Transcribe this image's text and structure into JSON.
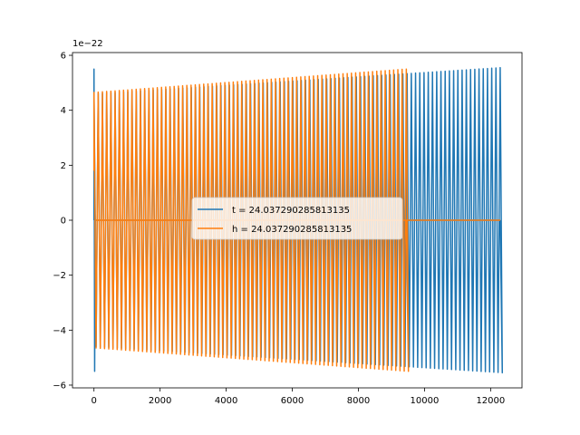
{
  "chart_data": {
    "type": "line",
    "title": "",
    "xlabel": "",
    "ylabel": "",
    "offset_text": "1e−22",
    "xlim": [
      -650,
      12950
    ],
    "ylim": [
      -6.1,
      6.1
    ],
    "xticks": [
      0,
      2000,
      4000,
      6000,
      8000,
      10000,
      12000
    ],
    "xtick_labels": [
      "0",
      "2000",
      "4000",
      "6000",
      "8000",
      "10000",
      "12000"
    ],
    "yticks": [
      -6,
      -4,
      -2,
      0,
      2,
      4,
      6
    ],
    "ytick_labels": [
      "−6",
      "−4",
      "−2",
      "0",
      "2",
      "4",
      "6"
    ],
    "grid": false,
    "legend_position": "center",
    "series": [
      {
        "name": "t = 24.037290285813135",
        "color": "#1f77b4",
        "x_start": 0,
        "x_end": 12290,
        "amplitude_start": 4.6,
        "amplitude_end": 5.55,
        "spike_start": 5.5,
        "cycles": 96
      },
      {
        "name": "h = 24.037290285813135",
        "color": "#ff7f0e",
        "x_start": 0,
        "x_end": 9450,
        "amplitude_start": 4.65,
        "amplitude_end": 5.5,
        "start_value": 1.8,
        "cycles": 74,
        "tail_value": 0,
        "tail_end": 12290
      }
    ]
  }
}
